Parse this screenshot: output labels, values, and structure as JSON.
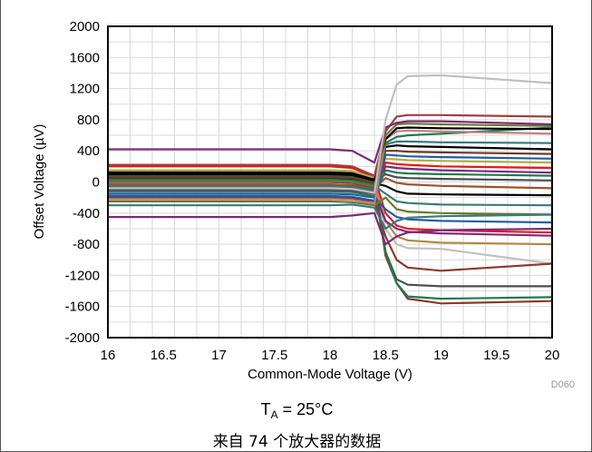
{
  "chart_data": {
    "type": "line",
    "xlabel": "Common-Mode Voltage (V)",
    "ylabel": "Offset Voltage (µV)",
    "xlim": [
      16,
      20
    ],
    "ylim": [
      -2000,
      2000
    ],
    "xticks": [
      "16",
      "16.5",
      "17",
      "17.5",
      "18",
      "18.5",
      "19",
      "19.5",
      "20"
    ],
    "yticks": [
      "2000",
      "1600",
      "1200",
      "800",
      "400",
      "0",
      "-400",
      "-800",
      "-1200",
      "-1600",
      "-2000"
    ],
    "grid": true,
    "legend": "none",
    "x": [
      16,
      18,
      18.2,
      18.4,
      18.5,
      18.6,
      18.7,
      19,
      20
    ],
    "series": [
      {
        "color": "#4d4d4d",
        "values": [
          130,
          130,
          120,
          40,
          -900,
          -1250,
          -1320,
          -1340,
          -1340
        ]
      },
      {
        "color": "#8b3a2a",
        "values": [
          100,
          100,
          90,
          0,
          -950,
          -1300,
          -1500,
          -1560,
          -1530
        ]
      },
      {
        "color": "#1f7a4d",
        "values": [
          -50,
          -50,
          -60,
          -100,
          -900,
          -1300,
          -1470,
          -1500,
          -1480
        ]
      },
      {
        "color": "#c0c0c0",
        "values": [
          60,
          60,
          50,
          -40,
          -600,
          -800,
          -850,
          -860,
          -1050
        ]
      },
      {
        "color": "#8b3a2a",
        "values": [
          -200,
          -200,
          -210,
          -250,
          -700,
          -1000,
          -1100,
          -1140,
          -1050
        ]
      },
      {
        "color": "#b08a4a",
        "values": [
          40,
          40,
          30,
          -30,
          -500,
          -700,
          -750,
          -780,
          -800
        ]
      },
      {
        "color": "#7a2a7a",
        "values": [
          -100,
          -100,
          -110,
          -150,
          -500,
          -600,
          -640,
          -660,
          -690
        ]
      },
      {
        "color": "#e31a1c",
        "values": [
          200,
          200,
          180,
          60,
          -400,
          -560,
          -600,
          -620,
          -650
        ]
      },
      {
        "color": "#1f5fa0",
        "values": [
          -150,
          -150,
          -160,
          -200,
          -350,
          -450,
          -480,
          -500,
          -520
        ]
      },
      {
        "color": "#6b7a2a",
        "values": [
          -250,
          -250,
          -260,
          -300,
          -200,
          -350,
          -380,
          -400,
          -420
        ]
      },
      {
        "color": "#3a7a7a",
        "values": [
          0,
          0,
          -10,
          -50,
          -150,
          -250,
          -270,
          -290,
          -300
        ]
      },
      {
        "color": "#000000",
        "values": [
          50,
          50,
          40,
          -20,
          -50,
          -120,
          -150,
          -160,
          -170
        ]
      },
      {
        "color": "#a0522d",
        "values": [
          -30,
          -30,
          -40,
          -80,
          50,
          -10,
          -30,
          -50,
          -80
        ]
      },
      {
        "color": "#4d4d4d",
        "values": [
          80,
          80,
          70,
          10,
          100,
          60,
          50,
          40,
          20
        ]
      },
      {
        "color": "#1f7a4d",
        "values": [
          -120,
          -120,
          -130,
          -180,
          150,
          120,
          110,
          100,
          80
        ]
      },
      {
        "color": "#7a2a7a",
        "values": [
          0,
          0,
          -10,
          -70,
          200,
          180,
          170,
          150,
          120
        ]
      },
      {
        "color": "#e31a1c",
        "values": [
          -80,
          -80,
          -90,
          -140,
          250,
          230,
          220,
          200,
          180
        ]
      },
      {
        "color": "#b0b040",
        "values": [
          150,
          150,
          140,
          50,
          300,
          290,
          280,
          270,
          250
        ]
      },
      {
        "color": "#1f5fa0",
        "values": [
          -180,
          -180,
          -190,
          -240,
          350,
          340,
          330,
          320,
          300
        ]
      },
      {
        "color": "#6b3a2a",
        "values": [
          60,
          60,
          50,
          -20,
          400,
          400,
          390,
          380,
          360
        ]
      },
      {
        "color": "#000000",
        "values": [
          120,
          120,
          110,
          30,
          450,
          470,
          460,
          450,
          420
        ]
      },
      {
        "color": "#3a7a7a",
        "values": [
          -60,
          -60,
          -70,
          -120,
          480,
          520,
          520,
          510,
          500
        ]
      },
      {
        "color": "#1f7a4d",
        "values": [
          30,
          30,
          20,
          -40,
          500,
          580,
          600,
          620,
          700
        ]
      },
      {
        "color": "#c08080",
        "values": [
          -220,
          -220,
          -230,
          -280,
          550,
          650,
          660,
          650,
          620
        ]
      },
      {
        "color": "#000000",
        "values": [
          100,
          100,
          90,
          20,
          550,
          690,
          700,
          690,
          680
        ]
      },
      {
        "color": "#6b7a2a",
        "values": [
          10,
          10,
          0,
          -60,
          600,
          740,
          750,
          740,
          720
        ]
      },
      {
        "color": "#a04040",
        "values": [
          220,
          220,
          200,
          80,
          650,
          840,
          860,
          860,
          840
        ]
      },
      {
        "color": "#7a2a7a",
        "values": [
          420,
          420,
          400,
          250,
          700,
          760,
          780,
          780,
          740
        ]
      },
      {
        "color": "#c0c0c0",
        "values": [
          -80,
          -80,
          -90,
          -140,
          800,
          1250,
          1360,
          1370,
          1270
        ]
      },
      {
        "color": "#7a2a7a",
        "values": [
          -450,
          -450,
          -430,
          -400,
          -800,
          -700,
          -650,
          -620,
          -600
        ]
      },
      {
        "color": "#3a7a7a",
        "values": [
          -300,
          -300,
          -290,
          -330,
          -600,
          -500,
          -460,
          -440,
          -420
        ]
      }
    ]
  },
  "source_code": "D060",
  "conditions": {
    "prefix": "T",
    "sub": "A",
    "suffix": " = 25°C"
  },
  "note": "来自 74 个放大器的数据"
}
